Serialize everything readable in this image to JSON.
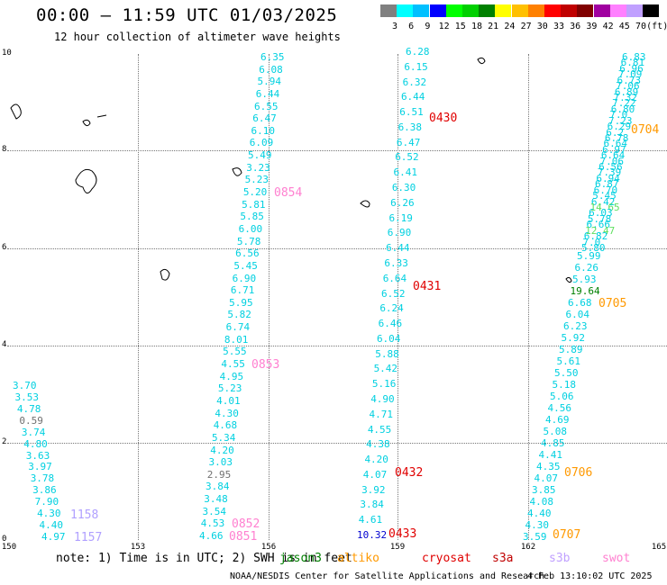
{
  "header": {
    "title": "00:00 – 11:59 UTC 01/03/2025",
    "subtitle": "12 hour collection of altimeter wave heights"
  },
  "scale": {
    "colors": [
      "#808080",
      "#00ffff",
      "#00c0ff",
      "#0000ff",
      "#00ff00",
      "#00d000",
      "#008000",
      "#ffff00",
      "#ffc000",
      "#ff8000",
      "#ff0000",
      "#c00000",
      "#800000",
      "#a000a0",
      "#ff80ff",
      "#c0a0ff",
      "#000000"
    ],
    "labels": [
      "3",
      "6",
      "9",
      "12",
      "15",
      "18",
      "21",
      "24",
      "27",
      "30",
      "33",
      "36",
      "39",
      "42",
      "45",
      "70",
      "(ft)"
    ]
  },
  "axes": {
    "x_ticks": [
      "150",
      "153",
      "156",
      "159",
      "162",
      "165"
    ],
    "y_ticks": [
      "10",
      "8",
      "6",
      "4",
      "2",
      "0"
    ]
  },
  "orbits": [
    {
      "label": "0430",
      "color": "#e00000"
    },
    {
      "label": "0431",
      "color": "#e00000"
    },
    {
      "label": "0432",
      "color": "#e00000"
    },
    {
      "label": "0433",
      "color": "#e00000"
    },
    {
      "label": "0854",
      "color": "#ff80d0"
    },
    {
      "label": "0853",
      "color": "#ff80d0"
    },
    {
      "label": "0852",
      "color": "#ff80d0"
    },
    {
      "label": "0851",
      "color": "#ff80d0"
    },
    {
      "label": "0704",
      "color": "#ff9900"
    },
    {
      "label": "0705",
      "color": "#ff9900"
    },
    {
      "label": "0706",
      "color": "#ff9900"
    },
    {
      "label": "0707",
      "color": "#ff9900"
    },
    {
      "label": "1158",
      "color": "#b0a0ff"
    },
    {
      "label": "1157",
      "color": "#b0a0ff"
    }
  ],
  "tracks": {
    "track_156": [
      {
        "v": "6.35",
        "c": "#00d0e0"
      },
      {
        "v": "6.08",
        "c": "#00d0e0"
      },
      {
        "v": "5.94",
        "c": "#00d0e0"
      },
      {
        "v": "6.44",
        "c": "#00d0e0"
      },
      {
        "v": "6.55",
        "c": "#00d0e0"
      },
      {
        "v": "6.47",
        "c": "#00d0e0"
      },
      {
        "v": "6.10",
        "c": "#00d0e0"
      },
      {
        "v": "6.09",
        "c": "#00d0e0"
      },
      {
        "v": "5.49",
        "c": "#00d0e0"
      },
      {
        "v": "3.23",
        "c": "#00d0e0"
      },
      {
        "v": "5.23",
        "c": "#00d0e0"
      },
      {
        "v": "5.20",
        "c": "#00d0e0"
      },
      {
        "v": "5.81",
        "c": "#00d0e0"
      },
      {
        "v": "5.85",
        "c": "#00d0e0"
      },
      {
        "v": "6.00",
        "c": "#00d0e0"
      },
      {
        "v": "5.78",
        "c": "#00d0e0"
      },
      {
        "v": "6.56",
        "c": "#00d0e0"
      },
      {
        "v": "5.45",
        "c": "#00d0e0"
      },
      {
        "v": "6.90",
        "c": "#00d0e0"
      },
      {
        "v": "6.71",
        "c": "#00d0e0"
      },
      {
        "v": "5.95",
        "c": "#00d0e0"
      },
      {
        "v": "5.82",
        "c": "#00d0e0"
      },
      {
        "v": "6.74",
        "c": "#00d0e0"
      },
      {
        "v": "8.01",
        "c": "#00d0e0"
      },
      {
        "v": "5.55",
        "c": "#00d0e0"
      },
      {
        "v": "4.55",
        "c": "#00d0e0"
      },
      {
        "v": "4.95",
        "c": "#00d0e0"
      },
      {
        "v": "5.23",
        "c": "#00d0e0"
      },
      {
        "v": "4.01",
        "c": "#00d0e0"
      },
      {
        "v": "4.30",
        "c": "#00d0e0"
      },
      {
        "v": "4.68",
        "c": "#00d0e0"
      },
      {
        "v": "5.34",
        "c": "#00d0e0"
      },
      {
        "v": "4.20",
        "c": "#00d0e0"
      },
      {
        "v": "3.03",
        "c": "#00d0e0"
      },
      {
        "v": "2.95",
        "c": "#707070"
      },
      {
        "v": "3.84",
        "c": "#00d0e0"
      },
      {
        "v": "3.48",
        "c": "#00d0e0"
      },
      {
        "v": "3.54",
        "c": "#00d0e0"
      },
      {
        "v": "4.53",
        "c": "#00d0e0"
      },
      {
        "v": "4.66",
        "c": "#00d0e0"
      }
    ],
    "track_150": [
      {
        "v": "3.70",
        "c": "#00d0e0"
      },
      {
        "v": "3.53",
        "c": "#00d0e0"
      },
      {
        "v": "4.78",
        "c": "#00d0e0"
      },
      {
        "v": "0.59",
        "c": "#707070"
      },
      {
        "v": "3.74",
        "c": "#00d0e0"
      },
      {
        "v": "4.80",
        "c": "#00d0e0"
      },
      {
        "v": "3.63",
        "c": "#00d0e0"
      },
      {
        "v": "3.97",
        "c": "#00d0e0"
      },
      {
        "v": "3.78",
        "c": "#00d0e0"
      },
      {
        "v": "3.86",
        "c": "#00d0e0"
      },
      {
        "v": "7.90",
        "c": "#00d0e0"
      },
      {
        "v": "4.30",
        "c": "#00d0e0"
      },
      {
        "v": "4.40",
        "c": "#00d0e0"
      },
      {
        "v": "4.97",
        "c": "#00d0e0"
      }
    ],
    "track_162": [
      {
        "v": "5.99",
        "c": "#00d0e0"
      },
      {
        "v": "6.26",
        "c": "#00d0e0"
      },
      {
        "v": "5.93",
        "c": "#00d0e0"
      },
      {
        "v": "19.64",
        "c": "#008000"
      },
      {
        "v": "6.68",
        "c": "#00d0e0"
      },
      {
        "v": "6.04",
        "c": "#00d0e0"
      },
      {
        "v": "6.23",
        "c": "#00d0e0"
      },
      {
        "v": "5.92",
        "c": "#00d0e0"
      },
      {
        "v": "5.89",
        "c": "#00d0e0"
      },
      {
        "v": "5.61",
        "c": "#00d0e0"
      },
      {
        "v": "5.50",
        "c": "#00d0e0"
      },
      {
        "v": "5.18",
        "c": "#00d0e0"
      },
      {
        "v": "5.06",
        "c": "#00d0e0"
      },
      {
        "v": "4.56",
        "c": "#00d0e0"
      },
      {
        "v": "4.69",
        "c": "#00d0e0"
      },
      {
        "v": "5.08",
        "c": "#00d0e0"
      },
      {
        "v": "4.85",
        "c": "#00d0e0"
      },
      {
        "v": "4.41",
        "c": "#00d0e0"
      },
      {
        "v": "4.35",
        "c": "#00d0e0"
      },
      {
        "v": "4.07",
        "c": "#00d0e0"
      },
      {
        "v": "3.85",
        "c": "#00d0e0"
      },
      {
        "v": "4.08",
        "c": "#00d0e0"
      },
      {
        "v": "4.40",
        "c": "#00d0e0"
      },
      {
        "v": "4.30",
        "c": "#00d0e0"
      },
      {
        "v": "3.59",
        "c": "#00d0e0"
      }
    ],
    "track_164": [
      {
        "v": "6.83",
        "c": "#00d0e0"
      },
      {
        "v": "6.81",
        "c": "#00d0e0"
      },
      {
        "v": "6.96",
        "c": "#00d0e0"
      },
      {
        "v": "7.09",
        "c": "#00d0e0"
      },
      {
        "v": "6.73",
        "c": "#00d0e0"
      },
      {
        "v": "7.06",
        "c": "#00d0e0"
      },
      {
        "v": "6.89",
        "c": "#00d0e0"
      },
      {
        "v": "7.32",
        "c": "#00d0e0"
      },
      {
        "v": "7.22",
        "c": "#00d0e0"
      },
      {
        "v": "6.80",
        "c": "#00d0e0"
      },
      {
        "v": "7.0",
        "c": "#00d0e0"
      },
      {
        "v": "7.23",
        "c": "#00d0e0"
      },
      {
        "v": "6.29",
        "c": "#00d0e0"
      },
      {
        "v": "6.2",
        "c": "#00d0e0"
      },
      {
        "v": "6.78",
        "c": "#00d0e0"
      },
      {
        "v": "6.64",
        "c": "#00d0e0"
      },
      {
        "v": "6.97",
        "c": "#00d0e0"
      },
      {
        "v": "6.64",
        "c": "#00d0e0"
      },
      {
        "v": "7.06",
        "c": "#00d0e0"
      },
      {
        "v": "6.56",
        "c": "#00d0e0"
      },
      {
        "v": "7.39",
        "c": "#00d0e0"
      },
      {
        "v": "6.94",
        "c": "#00d0e0"
      },
      {
        "v": "6.87",
        "c": "#00d0e0"
      },
      {
        "v": "6.70",
        "c": "#00d0e0"
      },
      {
        "v": "5.45",
        "c": "#00d0e0"
      },
      {
        "v": "6.42",
        "c": "#00d0e0"
      },
      {
        "v": "14.65",
        "c": "#60e060"
      },
      {
        "v": "6.03",
        "c": "#00d0e0"
      },
      {
        "v": "5.78",
        "c": "#00d0e0"
      },
      {
        "v": "6.66",
        "c": "#00d0e0"
      },
      {
        "v": "12.47",
        "c": "#60e060"
      },
      {
        "v": "6.82",
        "c": "#00d0e0"
      },
      {
        "v": "7.0",
        "c": "#00d0e0"
      },
      {
        "v": "5.80",
        "c": "#00d0e0"
      }
    ],
    "track_159": [
      {
        "v": "6.28",
        "c": "#00d0e0"
      },
      {
        "v": "6.15",
        "c": "#00d0e0"
      },
      {
        "v": "6.32",
        "c": "#00d0e0"
      },
      {
        "v": "6.44",
        "c": "#00d0e0"
      },
      {
        "v": "6.51",
        "c": "#00d0e0"
      },
      {
        "v": "6.38",
        "c": "#00d0e0"
      },
      {
        "v": "6.47",
        "c": "#00d0e0"
      },
      {
        "v": "6.52",
        "c": "#00d0e0"
      },
      {
        "v": "6.41",
        "c": "#00d0e0"
      },
      {
        "v": "6.30",
        "c": "#00d0e0"
      },
      {
        "v": "6.26",
        "c": "#00d0e0"
      },
      {
        "v": "6.19",
        "c": "#00d0e0"
      },
      {
        "v": "6.90",
        "c": "#00d0e0"
      },
      {
        "v": "6.44",
        "c": "#00d0e0"
      },
      {
        "v": "6.33",
        "c": "#00d0e0"
      },
      {
        "v": "6.64",
        "c": "#00d0e0"
      },
      {
        "v": "6.52",
        "c": "#00d0e0"
      },
      {
        "v": "6.24",
        "c": "#00d0e0"
      },
      {
        "v": "6.46",
        "c": "#00d0e0"
      },
      {
        "v": "6.04",
        "c": "#00d0e0"
      },
      {
        "v": "5.88",
        "c": "#00d0e0"
      },
      {
        "v": "5.42",
        "c": "#00d0e0"
      },
      {
        "v": "5.16",
        "c": "#00d0e0"
      },
      {
        "v": "4.90",
        "c": "#00d0e0"
      },
      {
        "v": "4.71",
        "c": "#00d0e0"
      },
      {
        "v": "4.55",
        "c": "#00d0e0"
      },
      {
        "v": "4.38",
        "c": "#00d0e0"
      },
      {
        "v": "4.20",
        "c": "#00d0e0"
      },
      {
        "v": "4.07",
        "c": "#00d0e0"
      },
      {
        "v": "3.92",
        "c": "#00d0e0"
      },
      {
        "v": "3.84",
        "c": "#00d0e0"
      },
      {
        "v": "4.61",
        "c": "#00d0e0"
      },
      {
        "v": "10.32",
        "c": "#0000d0"
      }
    ]
  },
  "footer": {
    "note": "note:  1) Time is in UTC;  2) SWH is in feet",
    "satellites": [
      {
        "name": "jason3",
        "color": "#008000"
      },
      {
        "name": "altiko",
        "color": "#ff9900"
      },
      {
        "name": "cryosat",
        "color": "#e00000"
      },
      {
        "name": "s3a",
        "color": "#c00000"
      },
      {
        "name": "s3b",
        "color": "#c0a0ff"
      },
      {
        "name": "swot",
        "color": "#ff80d0"
      }
    ],
    "credit": "NOAA/NESDIS Center for Satellite Applications and Research",
    "timestamp": "4 Feb 13:10:02 UTC 2025"
  }
}
